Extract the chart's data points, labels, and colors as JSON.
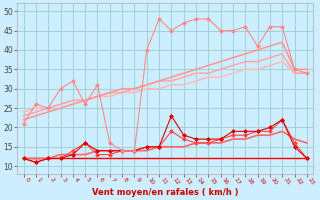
{
  "xlabel": "Vent moyen/en rafales ( km/h )",
  "bg_color": "#cceeff",
  "grid_color": "#99cccc",
  "xlim": [
    -0.5,
    23.5
  ],
  "ylim": [
    8,
    52
  ],
  "yticks": [
    10,
    15,
    20,
    25,
    30,
    35,
    40,
    45,
    50
  ],
  "xticks": [
    0,
    1,
    2,
    3,
    4,
    5,
    6,
    7,
    8,
    9,
    10,
    11,
    12,
    13,
    14,
    15,
    16,
    17,
    18,
    19,
    20,
    21,
    22,
    23
  ],
  "line_upper_jagged_x": [
    0,
    1,
    2,
    3,
    4,
    5,
    6,
    7,
    8,
    9,
    10,
    11,
    12,
    13,
    14,
    15,
    16,
    17,
    18,
    19,
    20,
    21,
    22,
    23
  ],
  "line_upper_jagged_y": [
    21,
    26,
    25,
    30,
    32,
    26,
    31,
    16,
    14,
    14,
    40,
    48,
    45,
    47,
    48,
    48,
    45,
    45,
    46,
    41,
    46,
    46,
    35,
    34
  ],
  "line_upper_jagged_color": "#ff8888",
  "line_trend1_x": [
    0,
    1,
    2,
    3,
    4,
    5,
    6,
    7,
    8,
    9,
    10,
    11,
    12,
    13,
    14,
    15,
    16,
    17,
    18,
    19,
    20,
    21,
    22,
    23
  ],
  "line_trend1_y": [
    22,
    23,
    24,
    25,
    26,
    27,
    28,
    29,
    30,
    30,
    31,
    32,
    33,
    34,
    35,
    36,
    37,
    38,
    39,
    40,
    41,
    42,
    35,
    35
  ],
  "line_trend1_color": "#ff9999",
  "line_trend2_x": [
    0,
    1,
    2,
    3,
    4,
    5,
    6,
    7,
    8,
    9,
    10,
    11,
    12,
    13,
    14,
    15,
    16,
    17,
    18,
    19,
    20,
    21,
    22,
    23
  ],
  "line_trend2_y": [
    23,
    24,
    25,
    26,
    27,
    27,
    28,
    29,
    29,
    30,
    31,
    32,
    32,
    33,
    34,
    34,
    35,
    36,
    37,
    37,
    38,
    39,
    34,
    34
  ],
  "line_trend2_color": "#ffaaaa",
  "line_trend3_x": [
    0,
    1,
    2,
    3,
    4,
    5,
    6,
    7,
    8,
    9,
    10,
    11,
    12,
    13,
    14,
    15,
    16,
    17,
    18,
    19,
    20,
    21,
    22,
    23
  ],
  "line_trend3_y": [
    24,
    25,
    25,
    26,
    27,
    27,
    28,
    28,
    29,
    29,
    30,
    30,
    31,
    31,
    32,
    33,
    33,
    34,
    35,
    35,
    36,
    37,
    34,
    34
  ],
  "line_trend3_color": "#ffbbbb",
  "line_lower_jagged1_x": [
    0,
    1,
    2,
    3,
    4,
    5,
    6,
    7,
    8,
    9,
    10,
    11,
    12,
    13,
    14,
    15,
    16,
    17,
    18,
    19,
    20,
    21,
    22,
    23
  ],
  "line_lower_jagged1_y": [
    12,
    11,
    12,
    12,
    13,
    16,
    14,
    14,
    14,
    14,
    15,
    15,
    23,
    18,
    17,
    17,
    17,
    19,
    19,
    19,
    20,
    22,
    15,
    12
  ],
  "line_lower_jagged1_color": "#dd0000",
  "line_lower_jagged2_x": [
    0,
    1,
    2,
    3,
    4,
    5,
    6,
    7,
    8,
    9,
    10,
    11,
    12,
    13,
    14,
    15,
    16,
    17,
    18,
    19,
    20,
    21,
    22,
    23
  ],
  "line_lower_jagged2_y": [
    12,
    11,
    12,
    12,
    14,
    16,
    13,
    13,
    14,
    14,
    15,
    15,
    19,
    17,
    16,
    16,
    17,
    18,
    18,
    19,
    19,
    22,
    16,
    12
  ],
  "line_lower_jagged2_color": "#ff4444",
  "line_lower_trend_x": [
    0,
    1,
    2,
    3,
    4,
    5,
    6,
    7,
    8,
    9,
    10,
    11,
    12,
    13,
    14,
    15,
    16,
    17,
    18,
    19,
    20,
    21,
    22,
    23
  ],
  "line_lower_trend_y": [
    12,
    12,
    12,
    13,
    13,
    13,
    14,
    14,
    14,
    14,
    14,
    15,
    15,
    15,
    16,
    16,
    16,
    17,
    17,
    18,
    18,
    19,
    17,
    16
  ],
  "line_lower_trend_color": "#ff6666",
  "line_flat_x": [
    0,
    1,
    2,
    3,
    4,
    5,
    6,
    7,
    8,
    9,
    10,
    11,
    12,
    13,
    14,
    15,
    16,
    17,
    18,
    19,
    20,
    21,
    22,
    23
  ],
  "line_flat_y": [
    12,
    12,
    12,
    12,
    12,
    12,
    12,
    12,
    12,
    12,
    12,
    12,
    12,
    12,
    12,
    12,
    12,
    12,
    12,
    12,
    12,
    12,
    12,
    12
  ],
  "line_flat_color": "#ff0000"
}
